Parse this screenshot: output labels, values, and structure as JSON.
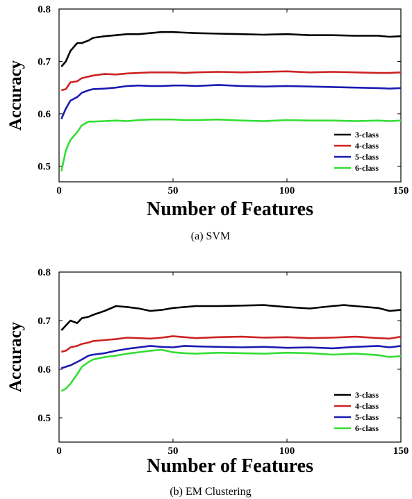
{
  "chart_data": [
    {
      "type": "line",
      "caption": "(a)  SVM",
      "xlabel": "Number of Features",
      "ylabel": "Accuracy",
      "xlim": [
        0,
        150
      ],
      "ylim": [
        0.47,
        0.8
      ],
      "xticks": [
        "0",
        "50",
        "100",
        "150"
      ],
      "yticks": [
        "0.5",
        "0.6",
        "0.7",
        "0.8"
      ],
      "legend_position": "bottom-right",
      "series": [
        {
          "name": "3-class",
          "color": "#000000",
          "x": [
            1,
            3,
            5,
            8,
            10,
            13,
            15,
            20,
            25,
            30,
            35,
            40,
            45,
            50,
            55,
            60,
            70,
            80,
            90,
            100,
            110,
            120,
            130,
            140,
            145,
            150
          ],
          "y": [
            0.69,
            0.7,
            0.72,
            0.735,
            0.735,
            0.74,
            0.745,
            0.748,
            0.75,
            0.752,
            0.752,
            0.754,
            0.756,
            0.756,
            0.755,
            0.754,
            0.753,
            0.752,
            0.751,
            0.752,
            0.75,
            0.75,
            0.749,
            0.749,
            0.747,
            0.748
          ]
        },
        {
          "name": "4-class",
          "color": "#cc2222",
          "x": [
            1,
            3,
            5,
            8,
            10,
            13,
            15,
            20,
            25,
            30,
            35,
            40,
            45,
            50,
            55,
            60,
            70,
            80,
            90,
            100,
            110,
            120,
            130,
            140,
            145,
            150
          ],
          "y": [
            0.645,
            0.647,
            0.66,
            0.662,
            0.668,
            0.671,
            0.673,
            0.676,
            0.675,
            0.677,
            0.678,
            0.679,
            0.679,
            0.679,
            0.678,
            0.679,
            0.68,
            0.679,
            0.68,
            0.681,
            0.679,
            0.68,
            0.679,
            0.678,
            0.678,
            0.679
          ]
        },
        {
          "name": "5-class",
          "color": "#1a1ab0",
          "x": [
            1,
            3,
            5,
            8,
            10,
            13,
            15,
            20,
            25,
            30,
            35,
            40,
            45,
            50,
            55,
            60,
            70,
            80,
            90,
            100,
            110,
            120,
            130,
            140,
            145,
            150
          ],
          "y": [
            0.59,
            0.61,
            0.625,
            0.632,
            0.64,
            0.645,
            0.647,
            0.648,
            0.65,
            0.653,
            0.654,
            0.653,
            0.653,
            0.654,
            0.654,
            0.653,
            0.655,
            0.653,
            0.652,
            0.653,
            0.652,
            0.651,
            0.65,
            0.649,
            0.648,
            0.649
          ]
        },
        {
          "name": "6-class",
          "color": "#33dd33",
          "x": [
            1,
            3,
            5,
            8,
            10,
            13,
            15,
            20,
            25,
            30,
            35,
            40,
            45,
            50,
            55,
            60,
            70,
            80,
            90,
            100,
            110,
            120,
            130,
            140,
            145,
            150
          ],
          "y": [
            0.49,
            0.53,
            0.55,
            0.565,
            0.578,
            0.585,
            0.585,
            0.586,
            0.587,
            0.586,
            0.588,
            0.589,
            0.589,
            0.589,
            0.588,
            0.588,
            0.589,
            0.587,
            0.586,
            0.588,
            0.587,
            0.587,
            0.586,
            0.587,
            0.586,
            0.587
          ]
        }
      ]
    },
    {
      "type": "line",
      "caption": "(b)  EM Clustering",
      "xlabel": "Number of Features",
      "ylabel": "Accuracy",
      "xlim": [
        0,
        150
      ],
      "ylim": [
        0.45,
        0.8
      ],
      "xticks": [
        "0",
        "50",
        "100",
        "150"
      ],
      "yticks": [
        "0.5",
        "0.6",
        "0.7",
        "0.8"
      ],
      "legend_position": "bottom-right",
      "series": [
        {
          "name": "3-class",
          "color": "#000000",
          "x": [
            1,
            3,
            5,
            8,
            10,
            13,
            15,
            20,
            25,
            30,
            35,
            40,
            45,
            50,
            55,
            60,
            70,
            80,
            90,
            100,
            110,
            120,
            125,
            130,
            140,
            145,
            150
          ],
          "y": [
            0.68,
            0.69,
            0.7,
            0.695,
            0.705,
            0.708,
            0.712,
            0.72,
            0.73,
            0.728,
            0.725,
            0.72,
            0.722,
            0.726,
            0.728,
            0.73,
            0.73,
            0.731,
            0.732,
            0.728,
            0.725,
            0.73,
            0.732,
            0.73,
            0.726,
            0.72,
            0.722
          ]
        },
        {
          "name": "4-class",
          "color": "#cc2222",
          "x": [
            1,
            3,
            5,
            8,
            10,
            13,
            15,
            20,
            25,
            30,
            35,
            40,
            45,
            50,
            55,
            60,
            70,
            80,
            90,
            100,
            110,
            120,
            130,
            140,
            145,
            150
          ],
          "y": [
            0.636,
            0.638,
            0.645,
            0.648,
            0.652,
            0.655,
            0.658,
            0.66,
            0.662,
            0.665,
            0.664,
            0.663,
            0.665,
            0.668,
            0.666,
            0.664,
            0.666,
            0.667,
            0.665,
            0.666,
            0.664,
            0.665,
            0.667,
            0.664,
            0.663,
            0.667
          ]
        },
        {
          "name": "5-class",
          "color": "#1a1ab0",
          "x": [
            1,
            3,
            5,
            8,
            10,
            13,
            15,
            20,
            25,
            30,
            35,
            40,
            45,
            50,
            55,
            60,
            70,
            80,
            90,
            100,
            110,
            120,
            130,
            140,
            145,
            150
          ],
          "y": [
            0.602,
            0.605,
            0.608,
            0.615,
            0.62,
            0.628,
            0.63,
            0.633,
            0.638,
            0.642,
            0.645,
            0.648,
            0.646,
            0.645,
            0.648,
            0.647,
            0.646,
            0.645,
            0.646,
            0.644,
            0.645,
            0.643,
            0.646,
            0.648,
            0.645,
            0.648
          ]
        },
        {
          "name": "6-class",
          "color": "#33dd33",
          "x": [
            1,
            3,
            5,
            8,
            10,
            13,
            15,
            20,
            25,
            30,
            35,
            40,
            45,
            50,
            55,
            60,
            70,
            80,
            90,
            100,
            110,
            120,
            130,
            140,
            145,
            150
          ],
          "y": [
            0.555,
            0.56,
            0.57,
            0.59,
            0.605,
            0.615,
            0.62,
            0.625,
            0.628,
            0.632,
            0.635,
            0.638,
            0.64,
            0.635,
            0.633,
            0.632,
            0.634,
            0.633,
            0.632,
            0.634,
            0.633,
            0.63,
            0.632,
            0.629,
            0.625,
            0.627
          ]
        }
      ]
    }
  ]
}
